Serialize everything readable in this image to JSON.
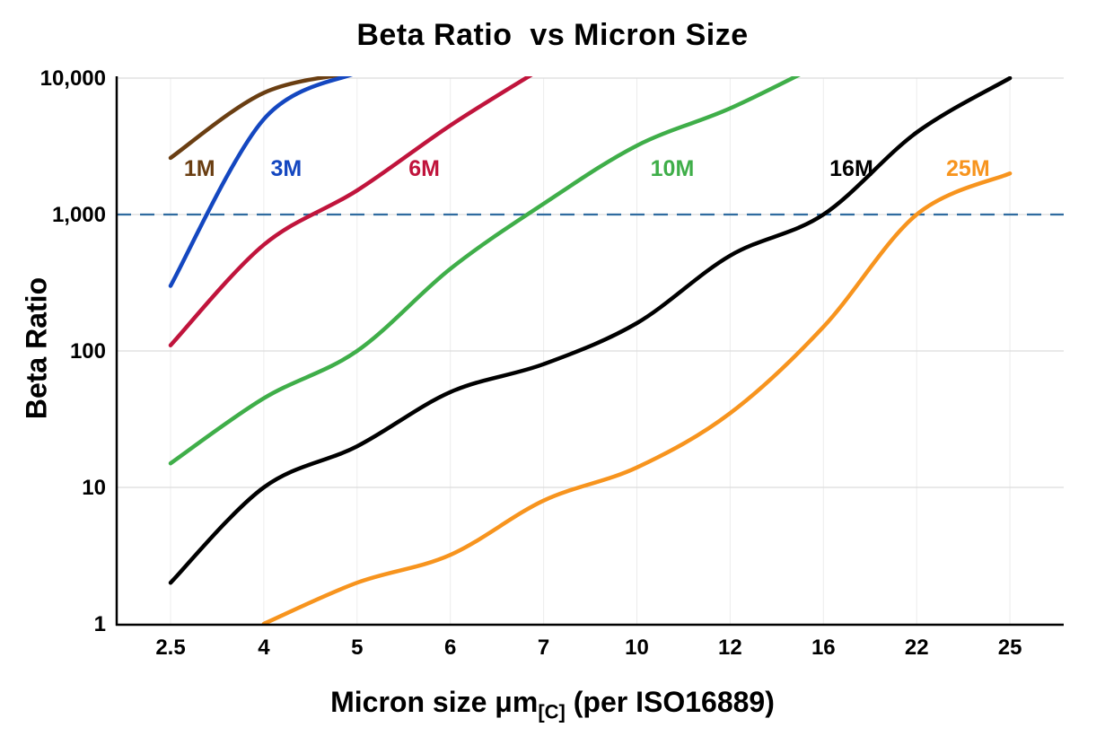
{
  "chart_data": {
    "type": "line",
    "title": "Beta Ratio  vs Micron Size",
    "ylabel": "Beta Ratio",
    "xlabel": {
      "main": "Micron size μm",
      "sub": "[C]",
      "rest": " (per ISO16889)"
    },
    "x_categories": [
      "2.5",
      "4",
      "5",
      "6",
      "7",
      "10",
      "12",
      "16",
      "22",
      "25"
    ],
    "y_ticks": [
      "1",
      "10",
      "100",
      "1,000",
      "10,000"
    ],
    "y_scale": "log",
    "ylim": [
      1,
      10000
    ],
    "grid": true,
    "legend_position": "inline-labels",
    "reference_line": {
      "value": 1000,
      "style": "dashed",
      "color": "#2f6b9f"
    },
    "series": [
      {
        "name": "1M",
        "color": "#6a3e12",
        "label_x": 0.31,
        "label_value": 2200,
        "values": [
          2600,
          7800,
          11000,
          null,
          null,
          null,
          null,
          null,
          null,
          null
        ]
      },
      {
        "name": "3M",
        "color": "#1447c0",
        "label_x": 1.24,
        "label_value": 2200,
        "values": [
          300,
          5000,
          11000,
          null,
          null,
          null,
          null,
          null,
          null,
          null
        ]
      },
      {
        "name": "6M",
        "color": "#c0143c",
        "label_x": 2.72,
        "label_value": 2200,
        "values": [
          110,
          600,
          1500,
          4500,
          12000,
          null,
          null,
          null,
          null,
          null
        ]
      },
      {
        "name": "10M",
        "color": "#3fae49",
        "label_x": 5.38,
        "label_value": 2200,
        "values": [
          15,
          45,
          100,
          400,
          1200,
          3200,
          6000,
          13000,
          null,
          null
        ]
      },
      {
        "name": "16M",
        "color": "#000000",
        "label_x": 7.3,
        "label_value": 2200,
        "values": [
          2,
          10,
          20,
          50,
          80,
          160,
          500,
          1000,
          4000,
          10000
        ]
      },
      {
        "name": "25M",
        "color": "#f7941e",
        "label_x": 8.55,
        "label_value": 2200,
        "values": [
          null,
          1,
          2,
          3.2,
          8,
          14,
          35,
          150,
          1000,
          2000
        ]
      }
    ]
  }
}
